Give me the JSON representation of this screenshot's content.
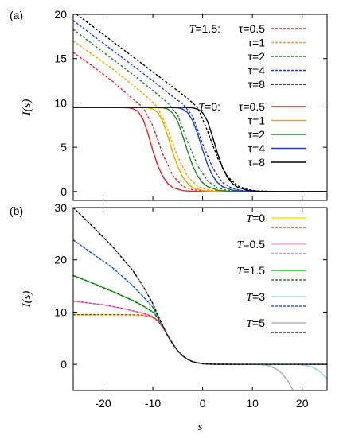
{
  "chart_data": [
    {
      "panel_label": "(a)",
      "type": "line",
      "xlim": [
        -26,
        25
      ],
      "ylim": [
        -1,
        20
      ],
      "xticks": [],
      "yticks": [
        0,
        5,
        10,
        15,
        20
      ],
      "ytick_labels": [
        "0",
        "5",
        "10",
        "15",
        "20"
      ],
      "ylabel": "I(s)",
      "legend_position": "top-right",
      "legend_groups": [
        {
          "prefix": "T=1.5:",
          "var": "T",
          "eq": "=1.5:",
          "style": "dashed"
        },
        {
          "prefix": "T=0:",
          "var": "T",
          "eq": "=0:",
          "style": "solid"
        }
      ],
      "series": [
        {
          "name": "τ=0.5",
          "group": 0,
          "color": "#d62728",
          "dash": true,
          "x": [
            -26,
            -22,
            -18,
            -15,
            -12,
            -10,
            -8,
            -6,
            -4,
            -2,
            0,
            2,
            4,
            6,
            8,
            10,
            14,
            20,
            25
          ],
          "y": [
            15.7,
            14.1,
            12.4,
            10.9,
            9.5,
            7.4,
            4.2,
            1.8,
            0.6,
            0.2,
            0.06,
            0.02,
            0,
            0,
            0,
            0,
            0,
            0,
            0
          ]
        },
        {
          "name": "τ=1",
          "group": 0,
          "color": "#f0a500",
          "dash": true,
          "x": [
            -26,
            -22,
            -18,
            -14,
            -11,
            -9,
            -7,
            -5,
            -3,
            -1,
            1,
            3,
            5,
            7,
            10,
            14,
            20,
            25
          ],
          "y": [
            17.0,
            15.4,
            13.8,
            12.0,
            10.6,
            9.5,
            7.0,
            3.9,
            1.7,
            0.6,
            0.2,
            0.06,
            0.02,
            0,
            0,
            0,
            0,
            0
          ]
        },
        {
          "name": "τ=2",
          "group": 0,
          "color": "#2e7d32",
          "dash": true,
          "x": [
            -26,
            -22,
            -18,
            -14,
            -10,
            -7,
            -5,
            -3,
            -1,
            1,
            3,
            5,
            7,
            9,
            12,
            16,
            20,
            25
          ],
          "y": [
            18.3,
            16.6,
            14.9,
            13.2,
            11.4,
            10.0,
            8.6,
            5.6,
            2.9,
            1.2,
            0.4,
            0.13,
            0.04,
            0.01,
            0,
            0,
            0,
            0
          ]
        },
        {
          "name": "τ=4",
          "group": 0,
          "color": "#1f3fbf",
          "dash": true,
          "x": [
            -26,
            -22,
            -18,
            -14,
            -10,
            -6,
            -4,
            -2,
            0,
            2,
            4,
            6,
            8,
            10,
            13,
            16,
            20,
            25
          ],
          "y": [
            19.3,
            17.6,
            15.9,
            14.2,
            12.5,
            10.7,
            9.9,
            8.5,
            5.4,
            2.7,
            1.0,
            0.35,
            0.1,
            0.03,
            0,
            0,
            0,
            0
          ]
        },
        {
          "name": "τ=8",
          "group": 0,
          "color": "#000000",
          "dash": true,
          "x": [
            -26,
            -22,
            -18,
            -14,
            -10,
            -6,
            -3,
            -1,
            1,
            3,
            5,
            7,
            9,
            11,
            14,
            17,
            20,
            25
          ],
          "y": [
            20.3,
            18.6,
            16.9,
            15.2,
            13.5,
            11.8,
            10.5,
            9.5,
            6.8,
            3.8,
            1.7,
            0.65,
            0.22,
            0.07,
            0.01,
            0,
            0,
            0
          ]
        },
        {
          "name": "τ=0.5",
          "group": 1,
          "color": "#d62728",
          "dash": false,
          "x": [
            -26,
            -18,
            -15,
            -14,
            -13,
            -12,
            -11,
            -10,
            -9,
            -8,
            -7,
            -6,
            -4,
            -2,
            0,
            4,
            10,
            25
          ],
          "y": [
            9.5,
            9.5,
            9.45,
            9.35,
            9.05,
            8.2,
            6.6,
            4.6,
            2.9,
            1.7,
            0.9,
            0.45,
            0.1,
            0.02,
            0,
            0,
            0,
            0
          ]
        },
        {
          "name": "τ=1",
          "group": 1,
          "color": "#f0a500",
          "dash": false,
          "x": [
            -26,
            -14,
            -11,
            -10,
            -9,
            -8,
            -7,
            -6,
            -5,
            -4,
            -3,
            -2,
            0,
            2,
            4,
            8,
            14,
            25
          ],
          "y": [
            9.5,
            9.5,
            9.45,
            9.3,
            8.9,
            7.9,
            6.3,
            4.4,
            2.8,
            1.65,
            0.9,
            0.45,
            0.1,
            0.02,
            0,
            0,
            0,
            0
          ]
        },
        {
          "name": "τ=2",
          "group": 1,
          "color": "#2e7d32",
          "dash": false,
          "x": [
            -26,
            -11,
            -8,
            -7,
            -6,
            -5,
            -4,
            -3,
            -2,
            -1,
            0,
            1,
            3,
            5,
            7,
            10,
            16,
            25
          ],
          "y": [
            9.5,
            9.5,
            9.45,
            9.3,
            8.85,
            7.9,
            6.3,
            4.5,
            2.9,
            1.75,
            1.0,
            0.55,
            0.15,
            0.04,
            0.01,
            0,
            0,
            0
          ]
        },
        {
          "name": "τ=4",
          "group": 1,
          "color": "#1f3fbf",
          "dash": false,
          "x": [
            -26,
            -8,
            -5,
            -4,
            -3,
            -2,
            -1,
            0,
            1,
            2,
            3,
            4,
            6,
            8,
            10,
            13,
            18,
            25
          ],
          "y": [
            9.5,
            9.5,
            9.45,
            9.3,
            8.9,
            8.0,
            6.5,
            4.7,
            3.0,
            1.8,
            1.0,
            0.55,
            0.15,
            0.04,
            0.01,
            0,
            0,
            0
          ]
        },
        {
          "name": "τ=8",
          "group": 1,
          "color": "#000000",
          "dash": false,
          "x": [
            -26,
            -4,
            -2,
            -1,
            0,
            1,
            2,
            3,
            4,
            5,
            6,
            7,
            9,
            11,
            13,
            16,
            20,
            25
          ],
          "y": [
            9.5,
            9.5,
            9.45,
            9.3,
            8.9,
            7.9,
            6.2,
            4.3,
            2.7,
            1.6,
            0.9,
            0.5,
            0.14,
            0.04,
            0.01,
            0,
            0,
            0
          ]
        }
      ]
    },
    {
      "panel_label": "(b)",
      "type": "line",
      "xlim": [
        -26,
        25
      ],
      "ylim": [
        -5,
        30
      ],
      "xticks": [
        -20,
        -10,
        0,
        10,
        20
      ],
      "xtick_labels": [
        "-20",
        "-10",
        "0",
        "10",
        "20"
      ],
      "yticks": [
        0,
        10,
        20,
        30
      ],
      "ytick_labels": [
        "0",
        "10",
        "20",
        "30"
      ],
      "xlabel": "s",
      "ylabel": "I(s)",
      "legend_position": "top-right",
      "legend_entries": [
        {
          "var": "T",
          "eq": "=0",
          "solid_color": "#ffe000",
          "dash_color": "#d62728"
        },
        {
          "var": "T",
          "eq": "=0.5",
          "solid_color": "#f4a6c0",
          "dash_color": "#c03cc0"
        },
        {
          "var": "T",
          "eq": "=1.5",
          "solid_color": "#1ec81e",
          "dash_color": "#1a5e1a"
        },
        {
          "var": "T",
          "eq": "=3",
          "solid_color": "#9ed8e8",
          "dash_color": "#1f3fbf"
        },
        {
          "var": "T",
          "eq": "=5",
          "solid_color": "#b4b4b4",
          "dash_color": "#000000"
        }
      ],
      "series": [
        {
          "name": "T=0 solid",
          "color": "#ffe000",
          "dash": false,
          "width": 1.6,
          "x": [
            -26,
            -16,
            -13,
            -12,
            -11,
            -10,
            -9,
            -8,
            -7,
            -6,
            -5,
            -4,
            -3,
            -2,
            0,
            2,
            6,
            25
          ],
          "y": [
            9.5,
            9.5,
            9.45,
            9.4,
            9.25,
            8.95,
            8.3,
            7.1,
            5.5,
            3.9,
            2.6,
            1.6,
            0.95,
            0.5,
            0.12,
            0.02,
            0,
            0
          ]
        },
        {
          "name": "T=0.5 solid",
          "color": "#f4a6c0",
          "dash": false,
          "width": 1.6,
          "x": [
            -26,
            -20,
            -16,
            -13,
            -11,
            -10,
            -9,
            -8,
            -7,
            -6,
            -5,
            -4,
            -3,
            -2,
            0,
            2,
            6,
            25
          ],
          "y": [
            12.1,
            11.4,
            10.7,
            10.0,
            9.5,
            9.1,
            8.4,
            7.1,
            5.5,
            3.9,
            2.6,
            1.6,
            0.95,
            0.5,
            0.12,
            0.02,
            0,
            0
          ]
        },
        {
          "name": "T=1.5 solid",
          "color": "#1ec81e",
          "dash": false,
          "width": 1.6,
          "x": [
            -26,
            -22,
            -18,
            -14,
            -12,
            -10,
            -9,
            -8,
            -7,
            -6,
            -5,
            -4,
            -3,
            -2,
            0,
            2,
            6,
            25
          ],
          "y": [
            17.0,
            15.5,
            13.9,
            12.2,
            11.2,
            10.0,
            8.9,
            7.3,
            5.5,
            3.9,
            2.6,
            1.6,
            0.95,
            0.5,
            0.12,
            0.02,
            0,
            0
          ]
        },
        {
          "name": "T=3 solid",
          "color": "#9ed8e8",
          "dash": false,
          "width": 1.6,
          "x": [
            -26,
            -22,
            -18,
            -14,
            -12,
            -10,
            -9,
            -8,
            -7,
            -6,
            -5,
            -4,
            -3,
            -2,
            0,
            2,
            6,
            14,
            18,
            20,
            22,
            23.5,
            25
          ],
          "y": [
            23.8,
            21.1,
            18.4,
            15.0,
            13.0,
            10.9,
            9.2,
            7.4,
            5.5,
            3.9,
            2.6,
            1.6,
            0.95,
            0.5,
            0.12,
            0.02,
            0,
            0,
            0,
            -0.1,
            -0.5,
            -1.3,
            -2.8
          ]
        },
        {
          "name": "T=5 solid",
          "color": "#b4b4b4",
          "dash": false,
          "width": 1.6,
          "x": [
            -26,
            -22,
            -18,
            -14,
            -12,
            -10,
            -9,
            -8,
            -7,
            -6,
            -5,
            -4,
            -3,
            -2,
            0,
            2,
            6,
            10,
            12,
            13.5,
            15,
            16,
            17,
            17.8,
            18.3
          ],
          "y": [
            30.0,
            26.3,
            22.4,
            17.9,
            15.0,
            11.6,
            9.4,
            7.4,
            5.5,
            3.9,
            2.6,
            1.6,
            0.95,
            0.5,
            0.12,
            0.02,
            0,
            0,
            -0.05,
            -0.3,
            -1.0,
            -1.8,
            -3.0,
            -4.3,
            -5.2
          ]
        },
        {
          "name": "T=0 dashed",
          "color": "#d62728",
          "dash": true,
          "width": 1.3,
          "x": [
            -26,
            -16,
            -13,
            -12,
            -11,
            -10,
            -9,
            -8,
            -7,
            -6,
            -5,
            -4,
            -3,
            -2,
            0,
            2,
            6,
            25
          ],
          "y": [
            9.5,
            9.5,
            9.45,
            9.4,
            9.25,
            8.95,
            8.3,
            7.1,
            5.5,
            3.9,
            2.6,
            1.6,
            0.95,
            0.5,
            0.12,
            0.02,
            0,
            0
          ]
        },
        {
          "name": "T=0.5 dashed",
          "color": "#c03cc0",
          "dash": true,
          "width": 1.3,
          "x": [
            -26,
            -20,
            -16,
            -13,
            -11,
            -10,
            -9,
            -8,
            -7,
            -6,
            -5,
            -4,
            -3,
            -2,
            0,
            2,
            6,
            25
          ],
          "y": [
            12.1,
            11.4,
            10.7,
            10.0,
            9.5,
            9.1,
            8.4,
            7.1,
            5.5,
            3.9,
            2.6,
            1.6,
            0.95,
            0.5,
            0.12,
            0.02,
            0,
            0
          ]
        },
        {
          "name": "T=1.5 dashed",
          "color": "#1a5e1a",
          "dash": true,
          "width": 1.3,
          "x": [
            -26,
            -22,
            -18,
            -14,
            -12,
            -10,
            -9,
            -8,
            -7,
            -6,
            -5,
            -4,
            -3,
            -2,
            0,
            2,
            6,
            25
          ],
          "y": [
            17.0,
            15.5,
            13.9,
            12.2,
            11.2,
            10.0,
            8.9,
            7.3,
            5.5,
            3.9,
            2.6,
            1.6,
            0.95,
            0.5,
            0.12,
            0.02,
            0,
            0
          ]
        },
        {
          "name": "T=3 dashed",
          "color": "#1f3fbf",
          "dash": true,
          "width": 1.3,
          "x": [
            -26,
            -22,
            -18,
            -14,
            -12,
            -10,
            -9,
            -8,
            -7,
            -6,
            -5,
            -4,
            -3,
            -2,
            0,
            2,
            6,
            25
          ],
          "y": [
            23.8,
            21.1,
            18.4,
            15.0,
            13.0,
            10.9,
            9.2,
            7.4,
            5.5,
            3.9,
            2.6,
            1.6,
            0.95,
            0.5,
            0.12,
            0.02,
            0,
            0
          ]
        },
        {
          "name": "T=5 dashed",
          "color": "#000000",
          "dash": true,
          "width": 1.3,
          "x": [
            -26,
            -22,
            -18,
            -14,
            -12,
            -10,
            -9,
            -8,
            -7,
            -6,
            -5,
            -4,
            -3,
            -2,
            0,
            2,
            6,
            25
          ],
          "y": [
            30.0,
            26.3,
            22.4,
            17.9,
            15.0,
            11.6,
            9.4,
            7.4,
            5.5,
            3.9,
            2.6,
            1.6,
            0.95,
            0.5,
            0.12,
            0.02,
            0,
            0
          ]
        }
      ]
    }
  ]
}
